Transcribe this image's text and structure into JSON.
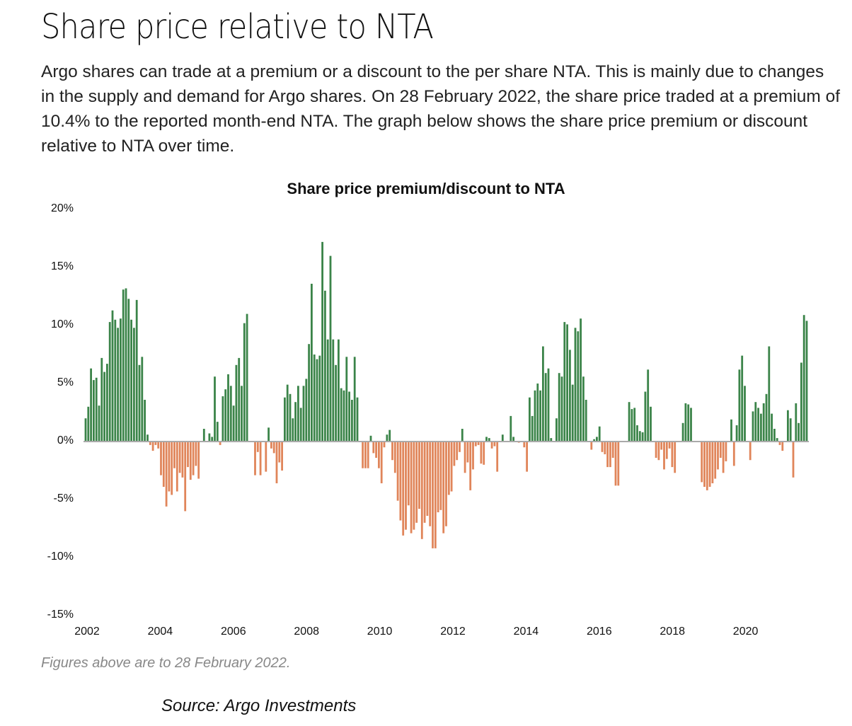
{
  "page": {
    "title": "Share price relative to NTA",
    "description": "Argo shares can trade at a premium or a discount to the per share NTA. This is mainly due to changes in the supply and demand for Argo shares. On 28 February 2022, the share price traded at a premium of 10.4% to the reported month-end NTA. The graph below shows the share price premium or discount relative to NTA over time.",
    "note": "Figures above are to 28 February 2022.",
    "source": "Source: Argo Investments"
  },
  "colors": {
    "positive": "#3b8449",
    "negative": "#e0855a",
    "axis": "#aaaaaa"
  },
  "chart_data": {
    "type": "bar",
    "title": "Share price premium/discount to NTA",
    "xlabel": "",
    "ylabel": "",
    "ylim": [
      -15,
      20
    ],
    "xlim": [
      2002,
      2022
    ],
    "y_ticks": [
      "20%",
      "15%",
      "10%",
      "5%",
      "0%",
      "-5%",
      "-10%",
      "-15%"
    ],
    "y_tick_values": [
      20,
      15,
      10,
      5,
      0,
      -5,
      -10,
      -15
    ],
    "x_ticks": [
      "2002",
      "2004",
      "2006",
      "2008",
      "2010",
      "2012",
      "2014",
      "2016",
      "2018",
      "2020"
    ],
    "x_tick_values": [
      2002,
      2004,
      2006,
      2008,
      2010,
      2012,
      2014,
      2016,
      2018,
      2020
    ],
    "frequency": "monthly",
    "start": "2002-01",
    "values": [
      2.0,
      3.0,
      6.3,
      5.3,
      5.5,
      3.1,
      7.2,
      6.0,
      6.7,
      10.3,
      11.3,
      10.5,
      9.8,
      10.6,
      13.1,
      13.2,
      12.3,
      10.5,
      9.8,
      12.2,
      6.6,
      7.3,
      3.6,
      0.6,
      -0.3,
      -0.8,
      -0.3,
      -0.6,
      -2.9,
      -3.9,
      -5.6,
      -4.3,
      -4.6,
      -2.3,
      -4.3,
      -2.7,
      -3.1,
      -6.0,
      -2.2,
      -3.3,
      -2.9,
      -2.1,
      -3.2,
      0,
      1.1,
      0,
      0.7,
      0.4,
      5.6,
      1.7,
      -0.3,
      3.9,
      4.5,
      5.8,
      4.8,
      3.1,
      6.6,
      7.2,
      4.8,
      10.2,
      11.0,
      0,
      0,
      -2.9,
      -0.9,
      -2.9,
      0,
      -2.6,
      1.2,
      -0.6,
      -1.0,
      -3.6,
      -1.8,
      -2.5,
      3.8,
      4.9,
      4.1,
      2.0,
      3.4,
      4.8,
      2.9,
      4.8,
      5.4,
      8.4,
      13.6,
      7.5,
      7.1,
      7.4,
      17.2,
      13.0,
      8.8,
      16.0,
      8.8,
      6.6,
      8.8,
      4.6,
      4.4,
      7.3,
      4.3,
      3.6,
      7.3,
      3.8,
      0,
      -2.3,
      -2.3,
      -2.3,
      0.5,
      -1.0,
      -1.4,
      -2.3,
      -3.6,
      -0.5,
      0.6,
      1.0,
      -1.6,
      -2.7,
      -5.1,
      -6.8,
      -8.1,
      -7.6,
      -5.5,
      -7.9,
      -7.6,
      -7.0,
      -5.8,
      -8.4,
      -7.0,
      -6.4,
      -7.3,
      -9.2,
      -9.2,
      -6.1,
      -5.9,
      -7.9,
      -7.3,
      -4.6,
      -4.3,
      -2.1,
      -1.6,
      -0.9,
      1.1,
      -2.7,
      -1.8,
      -4.2,
      -2.4,
      -0.4,
      -0.3,
      -1.9,
      -2.0,
      0.4,
      0.3,
      -0.6,
      -0.4,
      -2.6,
      0,
      0.6,
      0,
      0,
      2.2,
      0.4,
      0,
      -0.1,
      0,
      -0.5,
      -2.6,
      3.8,
      2.2,
      4.4,
      5.0,
      4.4,
      8.2,
      5.9,
      6.3,
      0.3,
      0,
      2.0,
      5.9,
      5.6,
      10.3,
      10.1,
      7.9,
      4.9,
      9.8,
      9.5,
      10.6,
      5.6,
      3.6,
      0,
      -0.7,
      0.2,
      0.4,
      1.3,
      -0.9,
      -1.1,
      -2.2,
      -2.2,
      -1.4,
      -3.8,
      -3.8,
      0,
      0,
      0,
      3.4,
      2.8,
      2.9,
      1.4,
      0.9,
      0.8,
      4.3,
      6.2,
      3.0,
      0,
      -1.4,
      -1.6,
      -0.7,
      -2.4,
      -1.5,
      -0.6,
      -2.2,
      -2.7,
      0,
      0,
      1.6,
      3.3,
      3.2,
      2.9,
      0,
      0,
      0,
      -3.5,
      -3.9,
      -4.2,
      -3.9,
      -3.6,
      -3.2,
      -2.4,
      -1.4,
      -2.7,
      -1.7,
      0,
      1.9,
      -2.1,
      1.4,
      6.2,
      7.4,
      4.8,
      0,
      -1.6,
      2.6,
      3.4,
      2.9,
      2.4,
      3.3,
      4.1,
      8.2,
      2.4,
      1.1,
      0.3,
      -0.3,
      -0.8,
      0,
      2.7,
      2.0,
      -3.1,
      3.3,
      1.6,
      6.8,
      10.9,
      10.4
    ]
  }
}
